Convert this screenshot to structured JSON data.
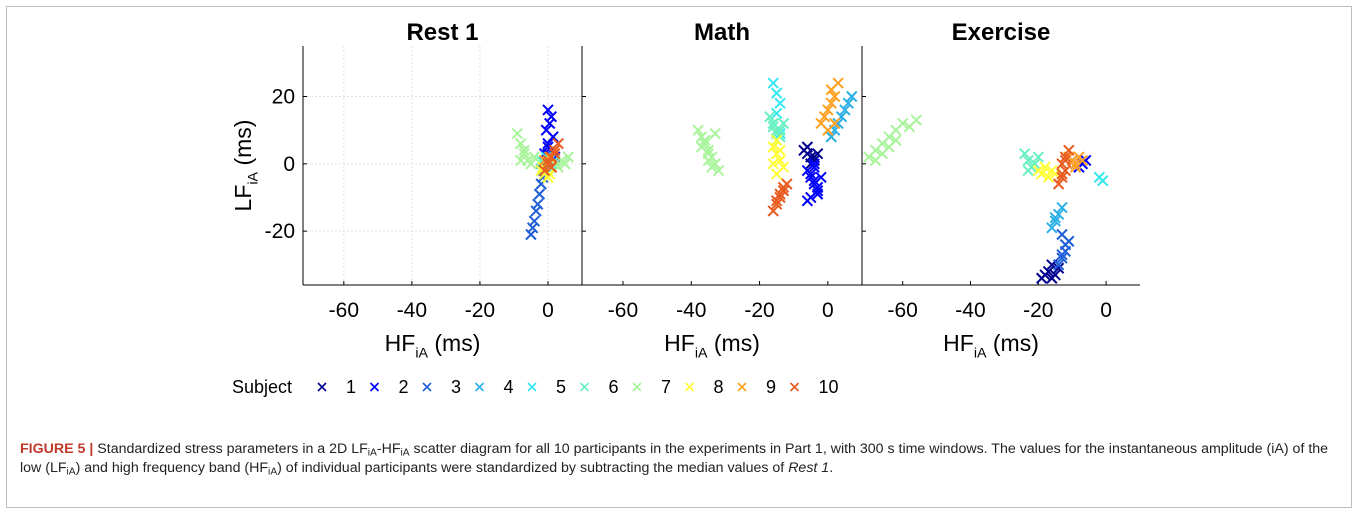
{
  "chart_data": [
    {
      "type": "scatter",
      "title": "Rest 1",
      "xlabel": "HF_iA (ms)",
      "ylabel": "LF_iA (ms)",
      "xlim": [
        -72,
        10
      ],
      "ylim": [
        -36,
        35
      ],
      "xticks": [
        -60,
        -40,
        -20,
        0
      ],
      "yticks": [
        -20,
        0,
        20
      ],
      "grid": true,
      "series": [
        {
          "name": "1",
          "x": [
            -1,
            0,
            1,
            2,
            -1,
            0.5
          ],
          "y": [
            0,
            3,
            -1,
            2,
            -2,
            1
          ]
        },
        {
          "name": "2",
          "x": [
            0,
            1,
            0.5,
            -0.5,
            1.5,
            0,
            1,
            2,
            0,
            -1
          ],
          "y": [
            16,
            14,
            12,
            10,
            8,
            6,
            4,
            2,
            5,
            3
          ]
        },
        {
          "name": "3",
          "x": [
            -5,
            -4.5,
            -4,
            -3.5,
            -3,
            -2.5,
            -2,
            -1.5,
            -1
          ],
          "y": [
            -21,
            -19,
            -17,
            -14,
            -12,
            -9,
            -6,
            -4,
            -2
          ]
        },
        {
          "name": "4",
          "x": [
            -2,
            -1,
            0,
            1,
            -1.5
          ],
          "y": [
            0,
            -1,
            1,
            0,
            -2
          ]
        },
        {
          "name": "5",
          "x": [
            -1,
            0.5,
            1,
            -0.5
          ],
          "y": [
            0,
            1,
            -1,
            2
          ]
        },
        {
          "name": "6",
          "x": [
            -2,
            -1,
            0,
            1,
            2
          ],
          "y": [
            1,
            0,
            -1,
            0,
            1
          ]
        },
        {
          "name": "7",
          "x": [
            -9,
            -8,
            -7,
            -6,
            -5,
            -4,
            2,
            3,
            4,
            5,
            6,
            -8,
            -7
          ],
          "y": [
            9,
            6,
            3,
            1,
            0,
            2,
            0,
            -1,
            1,
            0,
            2,
            1,
            4
          ]
        },
        {
          "name": "8",
          "x": [
            -2,
            -1,
            0,
            -1.5,
            0.5
          ],
          "y": [
            -2,
            -3,
            -4,
            -1,
            -3
          ]
        },
        {
          "name": "9",
          "x": [
            -1,
            0,
            1,
            0.5
          ],
          "y": [
            1,
            0,
            -1,
            2
          ]
        },
        {
          "name": "10",
          "x": [
            -1,
            0,
            1,
            2,
            3,
            0,
            1,
            2
          ],
          "y": [
            -2,
            0,
            2,
            4,
            6,
            1,
            -1,
            3
          ]
        }
      ]
    },
    {
      "type": "scatter",
      "title": "Math",
      "xlabel": "HF_iA (ms)",
      "ylabel": "",
      "xlim": [
        -72,
        10
      ],
      "ylim": [
        -36,
        35
      ],
      "xticks": [
        -60,
        -40,
        -20,
        0
      ],
      "yticks": [
        -20,
        0,
        20
      ],
      "grid": false,
      "series": [
        {
          "name": "1",
          "x": [
            -7,
            -6,
            -5,
            -4,
            -6,
            -5,
            -3,
            -4
          ],
          "y": [
            4,
            3,
            2,
            1,
            5,
            0,
            3,
            2
          ]
        },
        {
          "name": "2",
          "x": [
            -6,
            -5,
            -4,
            -3,
            -5,
            -4,
            -3,
            -6,
            -5,
            -4,
            -4,
            -3,
            -2
          ],
          "y": [
            -2,
            -4,
            -6,
            -8,
            -10,
            -5,
            -7,
            -11,
            -3,
            -1,
            0,
            -9,
            -4
          ]
        },
        {
          "name": "4",
          "x": [
            1,
            2,
            3,
            4,
            5,
            6,
            7
          ],
          "y": [
            8,
            10,
            12,
            14,
            16,
            18,
            20
          ]
        },
        {
          "name": "5",
          "x": [
            -16,
            -15,
            -14,
            -15,
            -16,
            -14,
            -15
          ],
          "y": [
            24,
            21,
            18,
            15,
            12,
            9,
            7
          ]
        },
        {
          "name": "6",
          "x": [
            -17,
            -16,
            -15,
            -14,
            -16,
            -15,
            -13,
            -14
          ],
          "y": [
            14,
            12,
            10,
            8,
            11,
            9,
            12,
            10
          ]
        },
        {
          "name": "7",
          "x": [
            -38,
            -37,
            -36,
            -35,
            -34,
            -33,
            -32,
            -36,
            -35,
            -34,
            -33,
            -37,
            -35
          ],
          "y": [
            10,
            8,
            6,
            4,
            2,
            0,
            -2,
            7,
            3,
            -1,
            9,
            5,
            1
          ]
        },
        {
          "name": "8",
          "x": [
            -16,
            -15,
            -14,
            -13,
            -15,
            -14,
            -16,
            -15
          ],
          "y": [
            5,
            3,
            1,
            -1,
            -3,
            4,
            0,
            7
          ]
        },
        {
          "name": "9",
          "x": [
            -2,
            -1,
            0,
            1,
            2,
            3,
            0,
            1,
            2
          ],
          "y": [
            12,
            14,
            16,
            18,
            20,
            24,
            10,
            22,
            12
          ]
        },
        {
          "name": "10",
          "x": [
            -16,
            -15,
            -14,
            -13,
            -12,
            -15,
            -14,
            -13
          ],
          "y": [
            -14,
            -12,
            -10,
            -8,
            -6,
            -11,
            -9,
            -7
          ]
        }
      ]
    },
    {
      "type": "scatter",
      "title": "Exercise",
      "xlabel": "HF_iA (ms)",
      "ylabel": "",
      "xlim": [
        -72,
        10
      ],
      "ylim": [
        -36,
        35
      ],
      "xticks": [
        -60,
        -40,
        -20,
        0
      ],
      "yticks": [
        -20,
        0,
        20
      ],
      "grid": false,
      "series": [
        {
          "name": "1",
          "x": [
            -19,
            -18,
            -17,
            -16,
            -15,
            -14,
            -16
          ],
          "y": [
            -34,
            -33,
            -32,
            -34,
            -33,
            -31,
            -30
          ]
        },
        {
          "name": "2",
          "x": [
            -10,
            -9,
            -8,
            -7,
            -6
          ],
          "y": [
            1,
            0,
            -1,
            0,
            1
          ]
        },
        {
          "name": "3",
          "x": [
            -14,
            -13,
            -12,
            -13,
            -12,
            -11,
            -13
          ],
          "y": [
            -30,
            -27,
            -24,
            -21,
            -26,
            -23,
            -28
          ]
        },
        {
          "name": "4",
          "x": [
            -16,
            -15,
            -14,
            -13,
            -15
          ],
          "y": [
            -19,
            -17,
            -15,
            -13,
            -16
          ]
        },
        {
          "name": "5",
          "x": [
            -2,
            -1
          ],
          "y": [
            -4,
            -5
          ]
        },
        {
          "name": "6",
          "x": [
            -24,
            -23,
            -22,
            -21,
            -20,
            -23
          ],
          "y": [
            3,
            1,
            -1,
            0,
            2,
            -2
          ]
        },
        {
          "name": "7",
          "x": [
            -70,
            -68,
            -66,
            -64,
            -62,
            -60,
            -58,
            -56,
            -66,
            -64,
            -62,
            -68
          ],
          "y": [
            2,
            4,
            6,
            8,
            10,
            12,
            11,
            13,
            3,
            5,
            7,
            1
          ]
        },
        {
          "name": "8",
          "x": [
            -20,
            -19,
            -18,
            -17,
            -16,
            -15
          ],
          "y": [
            -2,
            -3,
            -1,
            -4,
            -2,
            -3
          ]
        },
        {
          "name": "9",
          "x": [
            -11,
            -10,
            -9,
            -8,
            -7,
            -9
          ],
          "y": [
            2,
            1,
            0,
            2,
            1,
            -1
          ]
        },
        {
          "name": "10",
          "x": [
            -14,
            -13,
            -12,
            -13,
            -12,
            -11,
            -13,
            -12
          ],
          "y": [
            -6,
            -4,
            -2,
            0,
            2,
            4,
            -3,
            1
          ]
        }
      ]
    }
  ],
  "legend": {
    "title": "Subject",
    "placement": "bottom",
    "entries": [
      "1",
      "2",
      "3",
      "4",
      "5",
      "6",
      "7",
      "8",
      "9",
      "10"
    ]
  },
  "colors": [
    "#00008f",
    "#0000ff",
    "#1e5fd6",
    "#2bb0e6",
    "#33e8f0",
    "#69f0c0",
    "#a8f49a",
    "#ffff33",
    "#ffa020",
    "#e85a1e"
  ],
  "caption": {
    "label": "FIGURE 5 |",
    "text_1": "Standardized stress parameters in a 2D LF",
    "sub_1": "iA",
    "text_2": "-HF",
    "sub_2": "iA",
    "text_3": " scatter diagram for all 10 participants in the experiments in Part 1, with 300 s time windows. The values for the instantaneous amplitude (iA) of the low (LF",
    "sub_3": "iA",
    "text_4": ") and high frequency band (HF",
    "sub_4": "iA",
    "text_5": ") of individual participants were standardized by subtracting the median values of ",
    "italic": "Rest 1",
    "text_6": "."
  }
}
